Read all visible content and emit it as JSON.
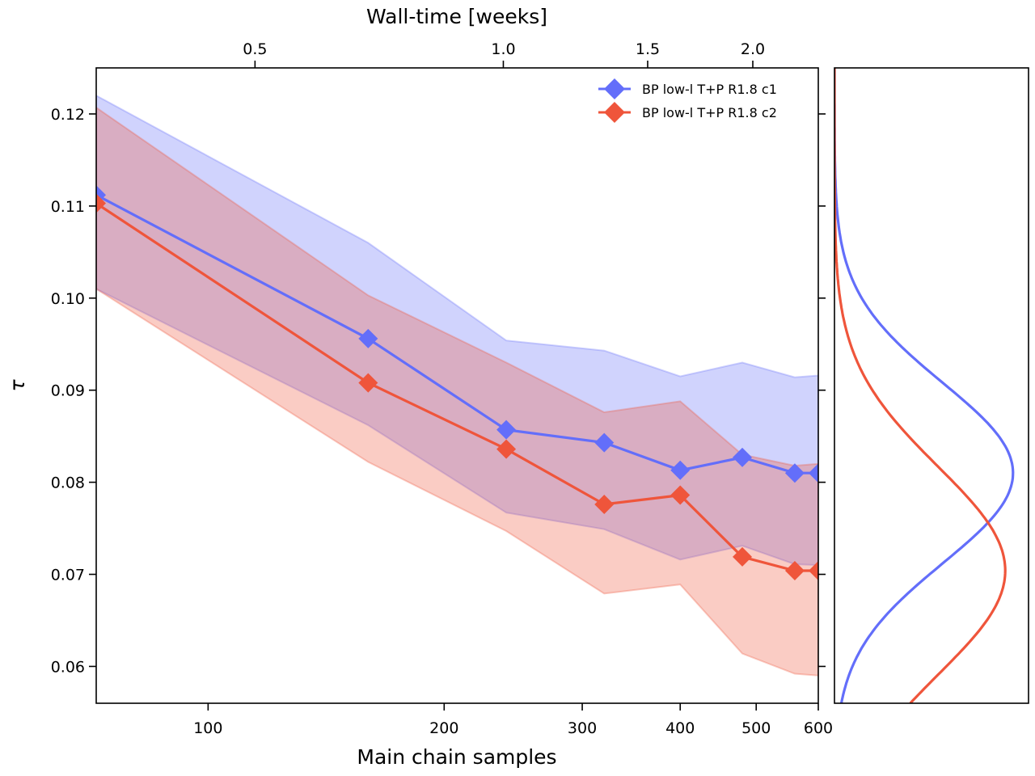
{
  "chart_data": [
    {
      "type": "line",
      "xlabel": "Main chain samples",
      "ylabel": "τ",
      "x_scale": "log",
      "xlim": [
        72,
        600
      ],
      "ylim": [
        0.056,
        0.125
      ],
      "x_ticks": [
        100,
        200,
        300,
        400,
        500,
        600
      ],
      "x_tick_labels": [
        "100",
        "200",
        "300",
        "400",
        "500",
        "600"
      ],
      "y_ticks": [
        0.06,
        0.07,
        0.08,
        0.09,
        0.1,
        0.11,
        0.12
      ],
      "y_tick_labels": [
        "0.06",
        "0.07",
        "0.08",
        "0.09",
        "0.10",
        "0.11",
        "0.12"
      ],
      "top_axis": {
        "label": "Wall-time [weeks]",
        "ticks": [
          0.5,
          1.0,
          1.5,
          2.0
        ],
        "tick_labels": [
          "0.5",
          "1.0",
          "1.5",
          "2.0"
        ],
        "tick_x_positions": [
          130,
          257,
          380,
          477
        ]
      },
      "legend_position": "top-right",
      "x": [
        72,
        160,
        240,
        320,
        400,
        480,
        560,
        600
      ],
      "series": [
        {
          "name": "BP low-l T+P R1.8 c1",
          "color": "#636efa",
          "values": [
            0.1112,
            0.0956,
            0.0857,
            0.0843,
            0.0813,
            0.0827,
            0.081,
            0.081
          ],
          "band_upper": [
            0.122,
            0.106,
            0.0954,
            0.0943,
            0.0915,
            0.093,
            0.0914,
            0.0916
          ],
          "band_lower": [
            0.101,
            0.0862,
            0.0767,
            0.0749,
            0.0716,
            0.0731,
            0.0711,
            0.071
          ]
        },
        {
          "name": "BP low-l T+P R1.8 c2",
          "color": "#ef553b",
          "values": [
            0.1103,
            0.0908,
            0.0836,
            0.0776,
            0.0786,
            0.0719,
            0.0704,
            0.0704
          ],
          "band_upper": [
            0.1207,
            0.1003,
            0.093,
            0.0876,
            0.0888,
            0.083,
            0.0818,
            0.082
          ],
          "band_lower": [
            0.101,
            0.0822,
            0.0747,
            0.0679,
            0.0689,
            0.0614,
            0.0592,
            0.059
          ]
        }
      ]
    },
    {
      "type": "line",
      "orientation": "vertical-density",
      "ylim": [
        0.056,
        0.125
      ],
      "series": [
        {
          "name": "c1",
          "color": "#636efa",
          "mean": 0.081,
          "sd": 0.0098,
          "peak": 0.92
        },
        {
          "name": "c2",
          "color": "#ef553b",
          "mean": 0.0704,
          "sd": 0.0113,
          "peak": 0.88
        }
      ]
    }
  ]
}
